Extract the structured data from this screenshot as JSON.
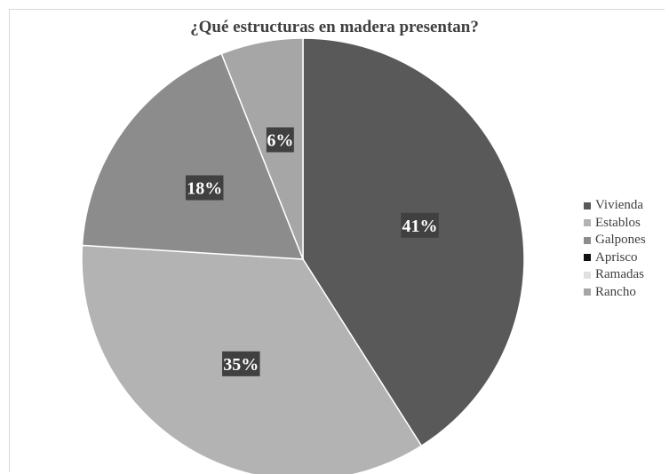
{
  "chart_data": {
    "type": "pie",
    "title": "¿Qué estructuras en madera presentan?",
    "categories": [
      "Vivienda",
      "Establos",
      "Galpones",
      "Aprisco",
      "Ramadas",
      "Rancho"
    ],
    "values": [
      41,
      35,
      18,
      0,
      0,
      6
    ],
    "labels": [
      "41%",
      "35%",
      "18%",
      "",
      "",
      "6%"
    ],
    "colors": [
      "#595959",
      "#b3b3b3",
      "#8c8c8c",
      "#111111",
      "#e0e0e0",
      "#a6a6a6"
    ],
    "legend_position": "right"
  }
}
